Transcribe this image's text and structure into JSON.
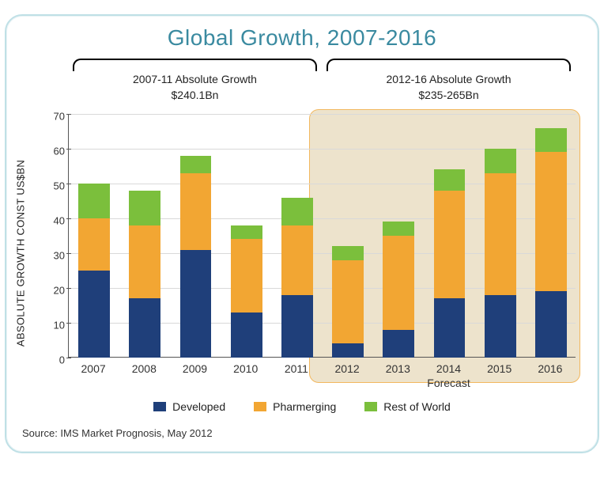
{
  "title": "Global Growth, 2007-2016",
  "source": "Source: IMS Market Prognosis, May 2012",
  "y_axis_label": "ABSOLUTE GROWTH CONST US$BN",
  "forecast_label": "Forecast",
  "brackets": {
    "left": {
      "line1": "2007-11 Absolute Growth",
      "line2": "$240.1Bn"
    },
    "right": {
      "line1": "2012-16 Absolute Growth",
      "line2": "$235-265Bn"
    }
  },
  "chart": {
    "type": "stacked-bar",
    "categories": [
      "2007",
      "2008",
      "2009",
      "2010",
      "2011",
      "2012",
      "2013",
      "2014",
      "2015",
      "2016"
    ],
    "series": [
      {
        "name": "Developed",
        "color": "#1f3f7a",
        "values": [
          25,
          17,
          31,
          13,
          18,
          4,
          8,
          17,
          18,
          19
        ]
      },
      {
        "name": "Pharmerging",
        "color": "#f2a633",
        "values": [
          15,
          21,
          22,
          21,
          20,
          24,
          27,
          31,
          35,
          40
        ]
      },
      {
        "name": "Rest of World",
        "color": "#7bbf3c",
        "values": [
          10,
          10,
          5,
          4,
          8,
          4,
          4,
          6,
          7,
          7
        ]
      }
    ],
    "ylim": [
      0,
      70
    ],
    "ytick_step": 10,
    "bar_width_ratio": 0.62,
    "forecast_start_index": 5,
    "background_color": "#ffffff",
    "forecast_bg_color": "#ede3cc",
    "forecast_border_color": "#f2b85f",
    "grid_color": "#d9d9d9",
    "axis_color": "#555555",
    "title_color": "#3a8aa0",
    "title_fontsize": 28,
    "label_fontsize": 13,
    "tick_fontsize": 13
  }
}
